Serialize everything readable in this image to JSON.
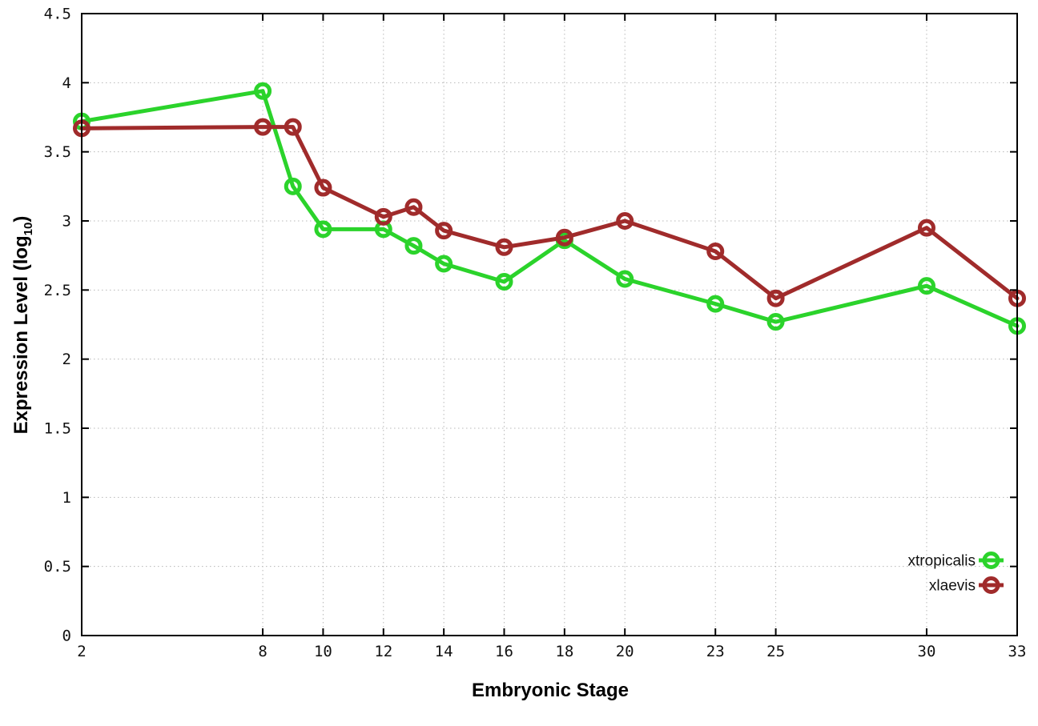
{
  "figure": {
    "background": "#ffffff"
  },
  "chart_data": {
    "type": "line",
    "title": "",
    "xlabel": "Embryonic Stage",
    "ylabel_prefix": "Expression Level (log",
    "ylabel_sub": "10",
    "ylabel_suffix": ")",
    "xlim": [
      2,
      33
    ],
    "ylim": [
      0,
      4.5
    ],
    "grid": true,
    "grid_style": "dotted",
    "grid_color": "#b8b8b8",
    "axis_color": "#000000",
    "legend_position": "inside-bottom-right",
    "x_ticks": [
      2,
      8,
      10,
      12,
      14,
      16,
      18,
      20,
      23,
      25,
      30,
      33
    ],
    "x_tick_labels": [
      "2",
      "8",
      "10",
      "12",
      "14",
      "16",
      "18",
      "20",
      "23",
      "25",
      "30",
      "33"
    ],
    "y_ticks": [
      0,
      0.5,
      1,
      1.5,
      2,
      2.5,
      3,
      3.5,
      4,
      4.5
    ],
    "y_tick_labels": [
      "0",
      "0.5",
      "1",
      "1.5",
      "2",
      "2.5",
      "3",
      "3.5",
      "4",
      "4.5"
    ],
    "marker": "open-circle",
    "x": [
      2,
      8,
      9,
      10,
      12,
      13,
      14,
      16,
      18,
      20,
      23,
      25,
      30,
      33
    ],
    "series": [
      {
        "name": "xtropicalis",
        "color": "#2bd32b",
        "values": [
          3.72,
          3.94,
          3.25,
          2.94,
          2.94,
          2.82,
          2.69,
          2.56,
          2.86,
          2.58,
          2.4,
          2.27,
          2.53,
          2.24
        ]
      },
      {
        "name": "xlaevis",
        "color": "#a02b2b",
        "values": [
          3.67,
          3.68,
          3.68,
          3.24,
          3.03,
          3.1,
          2.93,
          2.81,
          2.88,
          3.0,
          2.78,
          2.44,
          2.95,
          2.44
        ]
      }
    ]
  }
}
